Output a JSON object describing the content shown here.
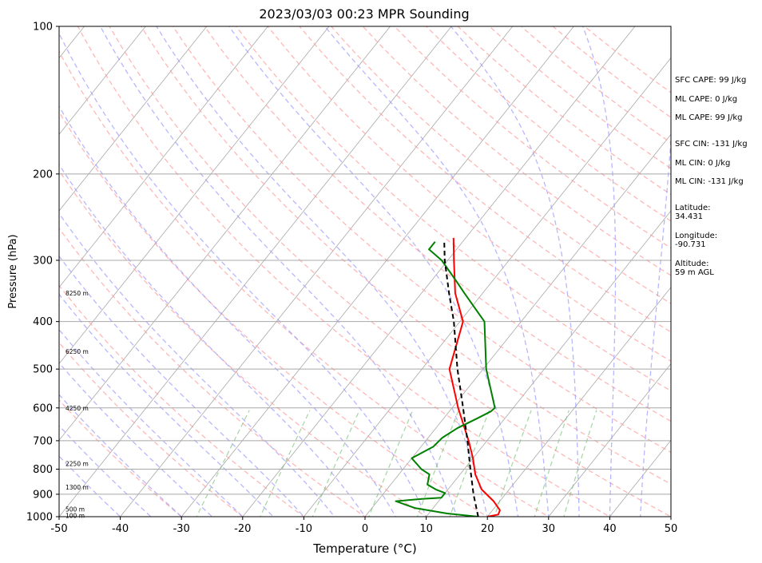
{
  "chart_data": {
    "type": "skew-t",
    "title": "2023/03/03 00:23 MPR Sounding",
    "xlabel": "Temperature (°C)",
    "ylabel": "Pressure (hPa)",
    "xlim": [
      -50,
      50
    ],
    "ylim_hpa": [
      1000,
      100
    ],
    "pressure_scale": "log",
    "x_ticks": [
      -50,
      -40,
      -30,
      -20,
      -10,
      0,
      10,
      20,
      30,
      40,
      50
    ],
    "y_ticks": [
      1000,
      900,
      800,
      700,
      600,
      500,
      400,
      300,
      200,
      100
    ],
    "height_labels": [
      {
        "p": 995,
        "text": "100 m"
      },
      {
        "p": 965,
        "text": "500 m"
      },
      {
        "p": 870,
        "text": "1300 m"
      },
      {
        "p": 780,
        "text": "2250 m"
      },
      {
        "p": 600,
        "text": "4250 m"
      },
      {
        "p": 460,
        "text": "6250 m"
      },
      {
        "p": 350,
        "text": "8250 m"
      }
    ],
    "series": [
      {
        "color": "#ff0000",
        "style": "solid",
        "points": [
          [
            1000,
            20
          ],
          [
            990,
            21.5
          ],
          [
            970,
            21.2
          ],
          [
            930,
            19
          ],
          [
            880,
            15.5
          ],
          [
            820,
            12.5
          ],
          [
            760,
            10
          ],
          [
            700,
            7
          ],
          [
            600,
            1
          ],
          [
            500,
            -5.5
          ],
          [
            400,
            -9.5
          ],
          [
            350,
            -14.5
          ],
          [
            300,
            -19
          ],
          [
            270,
            -22
          ]
        ]
      },
      {
        "color": "#008000",
        "style": "solid",
        "points": [
          [
            1000,
            18.5
          ],
          [
            985,
            13
          ],
          [
            960,
            7
          ],
          [
            930,
            3
          ],
          [
            920,
            7
          ],
          [
            915,
            10
          ],
          [
            895,
            10
          ],
          [
            880,
            8
          ],
          [
            860,
            6
          ],
          [
            820,
            5
          ],
          [
            800,
            3
          ],
          [
            760,
            0
          ],
          [
            720,
            2
          ],
          [
            690,
            2.3
          ],
          [
            660,
            3.5
          ],
          [
            630,
            5.5
          ],
          [
            610,
            6.8
          ],
          [
            600,
            7
          ],
          [
            500,
            0.5
          ],
          [
            400,
            -6
          ],
          [
            350,
            -13
          ],
          [
            330,
            -16
          ],
          [
            300,
            -21
          ],
          [
            285,
            -24.5
          ],
          [
            275,
            -24.5
          ]
        ]
      },
      {
        "color": "#000000",
        "style": "dashed",
        "points": [
          [
            1000,
            18.5
          ],
          [
            900,
            14.8
          ],
          [
            800,
            11
          ],
          [
            700,
            6.8
          ],
          [
            600,
            1.8
          ],
          [
            500,
            -4.2
          ],
          [
            400,
            -11
          ],
          [
            350,
            -15.5
          ],
          [
            300,
            -20.5
          ],
          [
            275,
            -23
          ]
        ]
      }
    ],
    "background_lines": {
      "isotherms": "gray solid",
      "dry_adiabats": "red dashed",
      "moist_adiabats": "blue dashed",
      "mixing_ratio": "green dashed"
    }
  },
  "indices": {
    "sfc_cape": "SFC CAPE: 99 J/kg",
    "ml_cape_1": "ML CAPE: 0 J/kg",
    "ml_cape_2": "ML CAPE: 99 J/kg",
    "sfc_cin": "SFC CIN: -131 J/kg",
    "ml_cin_1": "ML CIN: 0 J/kg",
    "ml_cin_2": "ML CIN: -131 J/kg",
    "latitude": "Latitude:\n34.431",
    "longitude": "Longitude:\n-90.731",
    "altitude": "Altitude:\n59 m AGL"
  }
}
